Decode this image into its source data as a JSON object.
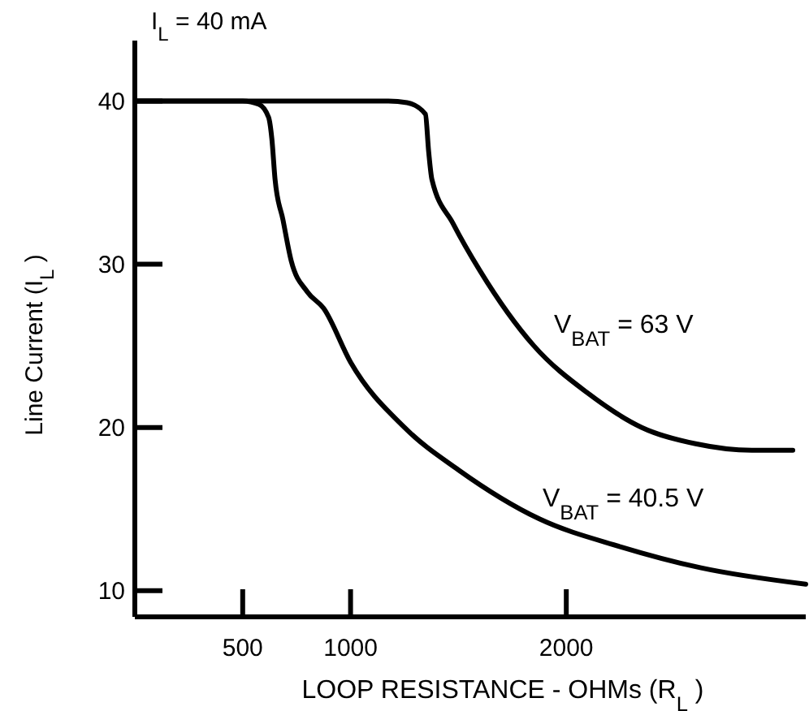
{
  "chart_data": {
    "type": "line",
    "xlabel": "LOOP RESISTANCE  -  OHMs (R$_{L}$ )",
    "ylabel": "Line Current (I$_{L}$ )",
    "xlim": [
      0,
      3110
    ],
    "ylim": [
      8.4,
      43.7
    ],
    "xticks": [
      500,
      1000,
      2000
    ],
    "yticks": [
      10,
      20,
      30,
      40
    ],
    "grid": false,
    "marker": "none",
    "line_style": "solid",
    "annotations": [
      "I$_{L}$ = 40 mA",
      "V$_{BAT}$ = 63 V",
      "V$_{BAT}$  = 40.5 V"
    ],
    "series": [
      {
        "color": "#000000",
        "x": [
          0,
          500,
          575,
          620,
          635,
          650,
          687,
          725,
          800,
          875,
          1000,
          1250,
          1500,
          1875,
          2250,
          2625,
          3110
        ],
        "values": [
          40,
          40,
          39.8,
          39,
          37.7,
          35.2,
          32.7,
          30.2,
          28.3,
          27.3,
          24,
          20,
          17.4,
          14.4,
          12.7,
          11.4,
          10.4
        ]
      },
      {
        "color": "#000000",
        "x": [
          0,
          1175,
          1262,
          1347,
          1362,
          1377,
          1475,
          1600,
          1850,
          2100,
          2350,
          2600,
          2860,
          3050
        ],
        "values": [
          40,
          40,
          39.9,
          39.2,
          36.9,
          35.2,
          32.5,
          29.6,
          25,
          22.1,
          20,
          19,
          18.6,
          18.6
        ]
      }
    ]
  }
}
